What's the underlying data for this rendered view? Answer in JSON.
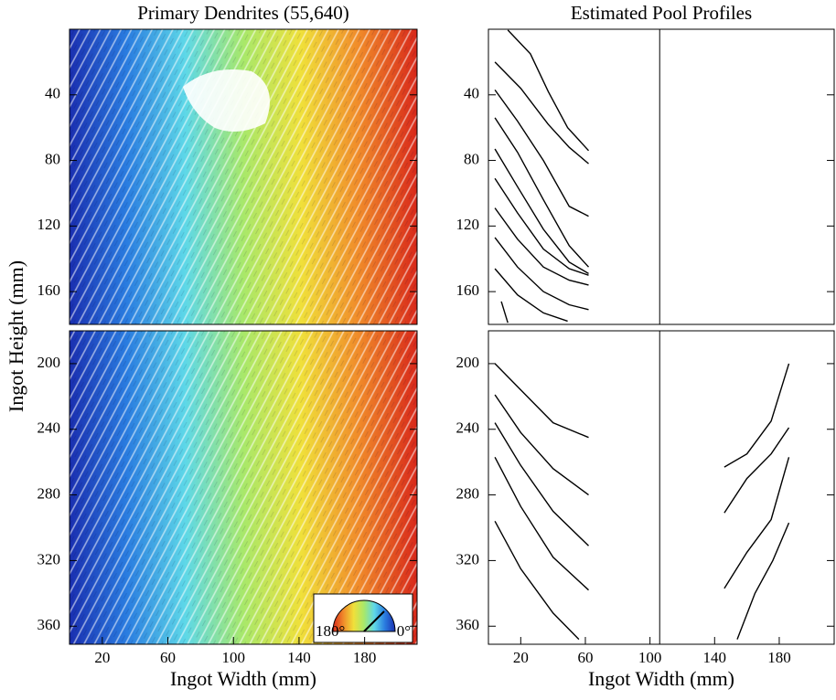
{
  "chart_data": [
    {
      "type": "image",
      "title": "Primary Dendrites (55,640)",
      "ylabel": "Ingot Height (mm)",
      "xlim": [
        0,
        212
      ],
      "ylim": [
        0,
        180
      ],
      "y_inverted": true,
      "yticks": [
        40,
        80,
        120,
        160
      ],
      "colormap": [
        "#1a2fb0",
        "#2a7de0",
        "#5ed8e8",
        "#a8e86a",
        "#f0e03a",
        "#f08a2a",
        "#d8281a"
      ]
    },
    {
      "type": "image",
      "xlabel": "Ingot Width (mm)",
      "xlim": [
        0,
        212
      ],
      "ylim": [
        180,
        371
      ],
      "y_inverted": true,
      "yticks": [
        200,
        240,
        280,
        320,
        360
      ],
      "xticks": [
        20,
        60,
        100,
        140,
        180
      ],
      "colormap": [
        "#1a2fb0",
        "#2a7de0",
        "#5ed8e8",
        "#a8e86a",
        "#f0e03a",
        "#f08a2a",
        "#d8281a"
      ],
      "colorbar_labels": [
        "180°",
        "0°"
      ]
    },
    {
      "type": "line",
      "title": "Estimated Pool Profiles",
      "color": "#000000",
      "center_line": 106,
      "xlim": [
        0,
        214
      ],
      "ylim": [
        0,
        180
      ],
      "y_inverted": true,
      "yticks": [
        40,
        80,
        120,
        160
      ],
      "series": [
        {
          "x": [
            12,
            26,
            37,
            49,
            62
          ],
          "values": [
            0.5,
            15,
            38,
            60,
            74
          ]
        },
        {
          "x": [
            4,
            20,
            37,
            50,
            62
          ],
          "values": [
            20,
            36,
            58,
            72,
            82
          ]
        },
        {
          "x": [
            4,
            18,
            34,
            50,
            62
          ],
          "values": [
            37,
            56,
            80,
            108,
            114
          ]
        },
        {
          "x": [
            4,
            18,
            34,
            50,
            62
          ],
          "values": [
            54,
            75,
            104,
            132,
            145
          ]
        },
        {
          "x": [
            4,
            18,
            34,
            50,
            62
          ],
          "values": [
            73,
            96,
            122,
            142,
            149
          ]
        },
        {
          "x": [
            4,
            18,
            34,
            50,
            62
          ],
          "values": [
            91,
            112,
            134,
            146,
            150
          ]
        },
        {
          "x": [
            4,
            18,
            34,
            50,
            62
          ],
          "values": [
            109,
            128,
            145,
            153,
            156
          ]
        },
        {
          "x": [
            4,
            18,
            34,
            50,
            62
          ],
          "values": [
            127,
            145,
            160,
            168,
            171
          ]
        },
        {
          "x": [
            4,
            18,
            34,
            49
          ],
          "values": [
            146,
            162,
            173,
            178
          ]
        },
        {
          "x": [
            8,
            12
          ],
          "values": [
            166,
            179
          ]
        }
      ]
    },
    {
      "type": "line",
      "xlabel": "Ingot Width (mm)",
      "color": "#000000",
      "center_line": 106,
      "xlim": [
        0,
        214
      ],
      "ylim": [
        180,
        371
      ],
      "y_inverted": true,
      "yticks": [
        200,
        240,
        280,
        320,
        360
      ],
      "xticks": [
        20,
        60,
        100,
        140,
        180
      ],
      "series": [
        {
          "x": [
            4,
            20,
            40,
            62
          ],
          "values": [
            200,
            216,
            236,
            245
          ]
        },
        {
          "x": [
            4,
            20,
            40,
            62
          ],
          "values": [
            219,
            242,
            264,
            280
          ]
        },
        {
          "x": [
            4,
            20,
            40,
            62
          ],
          "values": [
            236,
            262,
            290,
            311
          ]
        },
        {
          "x": [
            4,
            20,
            40,
            62
          ],
          "values": [
            257,
            287,
            318,
            338
          ]
        },
        {
          "x": [
            4,
            20,
            40,
            56
          ],
          "values": [
            296,
            325,
            352,
            368
          ]
        },
        {
          "x": [
            146,
            160,
            175,
            186
          ],
          "values": [
            263,
            255,
            235,
            200
          ]
        },
        {
          "x": [
            146,
            160,
            175,
            186
          ],
          "values": [
            291,
            270,
            255,
            239
          ]
        },
        {
          "x": [
            146,
            160,
            175,
            186
          ],
          "values": [
            337,
            315,
            295,
            257
          ]
        },
        {
          "x": [
            154,
            165,
            176,
            186
          ],
          "values": [
            368,
            340,
            320,
            297
          ]
        }
      ]
    }
  ]
}
